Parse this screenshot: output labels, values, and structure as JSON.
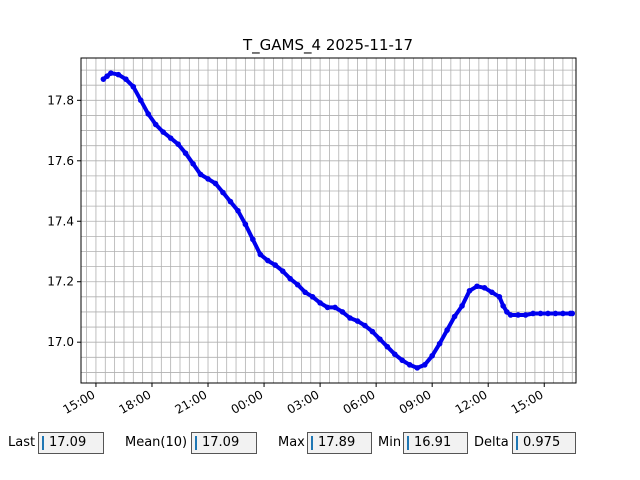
{
  "chart_data": {
    "type": "line",
    "title": "T_GAMS_4 2025-11-17",
    "xlabel": "",
    "ylabel": "",
    "x_tick_labels": [
      "15:00",
      "18:00",
      "21:00",
      "00:00",
      "03:00",
      "06:00",
      "09:00",
      "12:00",
      "15:00"
    ],
    "x_tick_hours": [
      15,
      18,
      21,
      24,
      27,
      30,
      33,
      36,
      39
    ],
    "y_tick_labels": [
      "17.0",
      "17.2",
      "17.4",
      "17.6",
      "17.8"
    ],
    "y_tick_values": [
      17.0,
      17.2,
      17.4,
      17.6,
      17.8
    ],
    "xlim_hours": [
      14.2,
      40.7
    ],
    "ylim": [
      16.865,
      17.94
    ],
    "grid": true,
    "line_color": "#0000ee",
    "series": [
      {
        "x_hours": [
          15.4,
          15.6,
          15.8,
          16.2,
          16.6,
          17.0,
          17.4,
          17.8,
          18.2,
          18.6,
          19.0,
          19.4,
          19.8,
          20.2,
          20.6,
          21.0,
          21.4,
          21.8,
          22.2,
          22.6,
          23.0,
          23.4,
          23.8,
          24.2,
          24.6,
          25.0,
          25.4,
          25.8,
          26.2,
          26.6,
          27.0,
          27.4,
          27.8,
          28.2,
          28.6,
          29.0,
          29.4,
          29.8,
          30.2,
          30.6,
          31.0,
          31.4,
          31.8,
          32.2,
          32.6,
          33.0,
          33.4,
          33.8,
          34.2,
          34.6,
          35.0,
          35.4,
          35.8,
          36.2,
          36.6,
          36.8,
          37.0,
          37.2,
          37.6,
          38.0,
          38.4,
          38.8,
          39.2,
          39.6,
          40.0,
          40.4,
          40.5
        ],
        "values": [
          17.87,
          17.88,
          17.89,
          17.885,
          17.87,
          17.845,
          17.8,
          17.755,
          17.72,
          17.695,
          17.675,
          17.655,
          17.625,
          17.59,
          17.555,
          17.54,
          17.525,
          17.495,
          17.465,
          17.435,
          17.39,
          17.34,
          17.29,
          17.27,
          17.255,
          17.235,
          17.21,
          17.19,
          17.165,
          17.15,
          17.13,
          17.115,
          17.115,
          17.1,
          17.08,
          17.07,
          17.055,
          17.035,
          17.01,
          16.985,
          16.96,
          16.94,
          16.925,
          16.915,
          16.925,
          16.955,
          16.995,
          17.04,
          17.085,
          17.12,
          17.17,
          17.185,
          17.18,
          17.165,
          17.15,
          17.12,
          17.1,
          17.09,
          17.09,
          17.09,
          17.095,
          17.095,
          17.095,
          17.095,
          17.095,
          17.095,
          17.095
        ]
      }
    ]
  },
  "stats": {
    "last_label": "Last",
    "last_value": "17.09",
    "mean_label": "Mean(10)",
    "mean_value": "17.09",
    "max_label": "Max",
    "max_value": "17.89",
    "min_label": "Min",
    "min_value": "16.91",
    "delta_label": "Delta",
    "delta_value": "0.975"
  }
}
